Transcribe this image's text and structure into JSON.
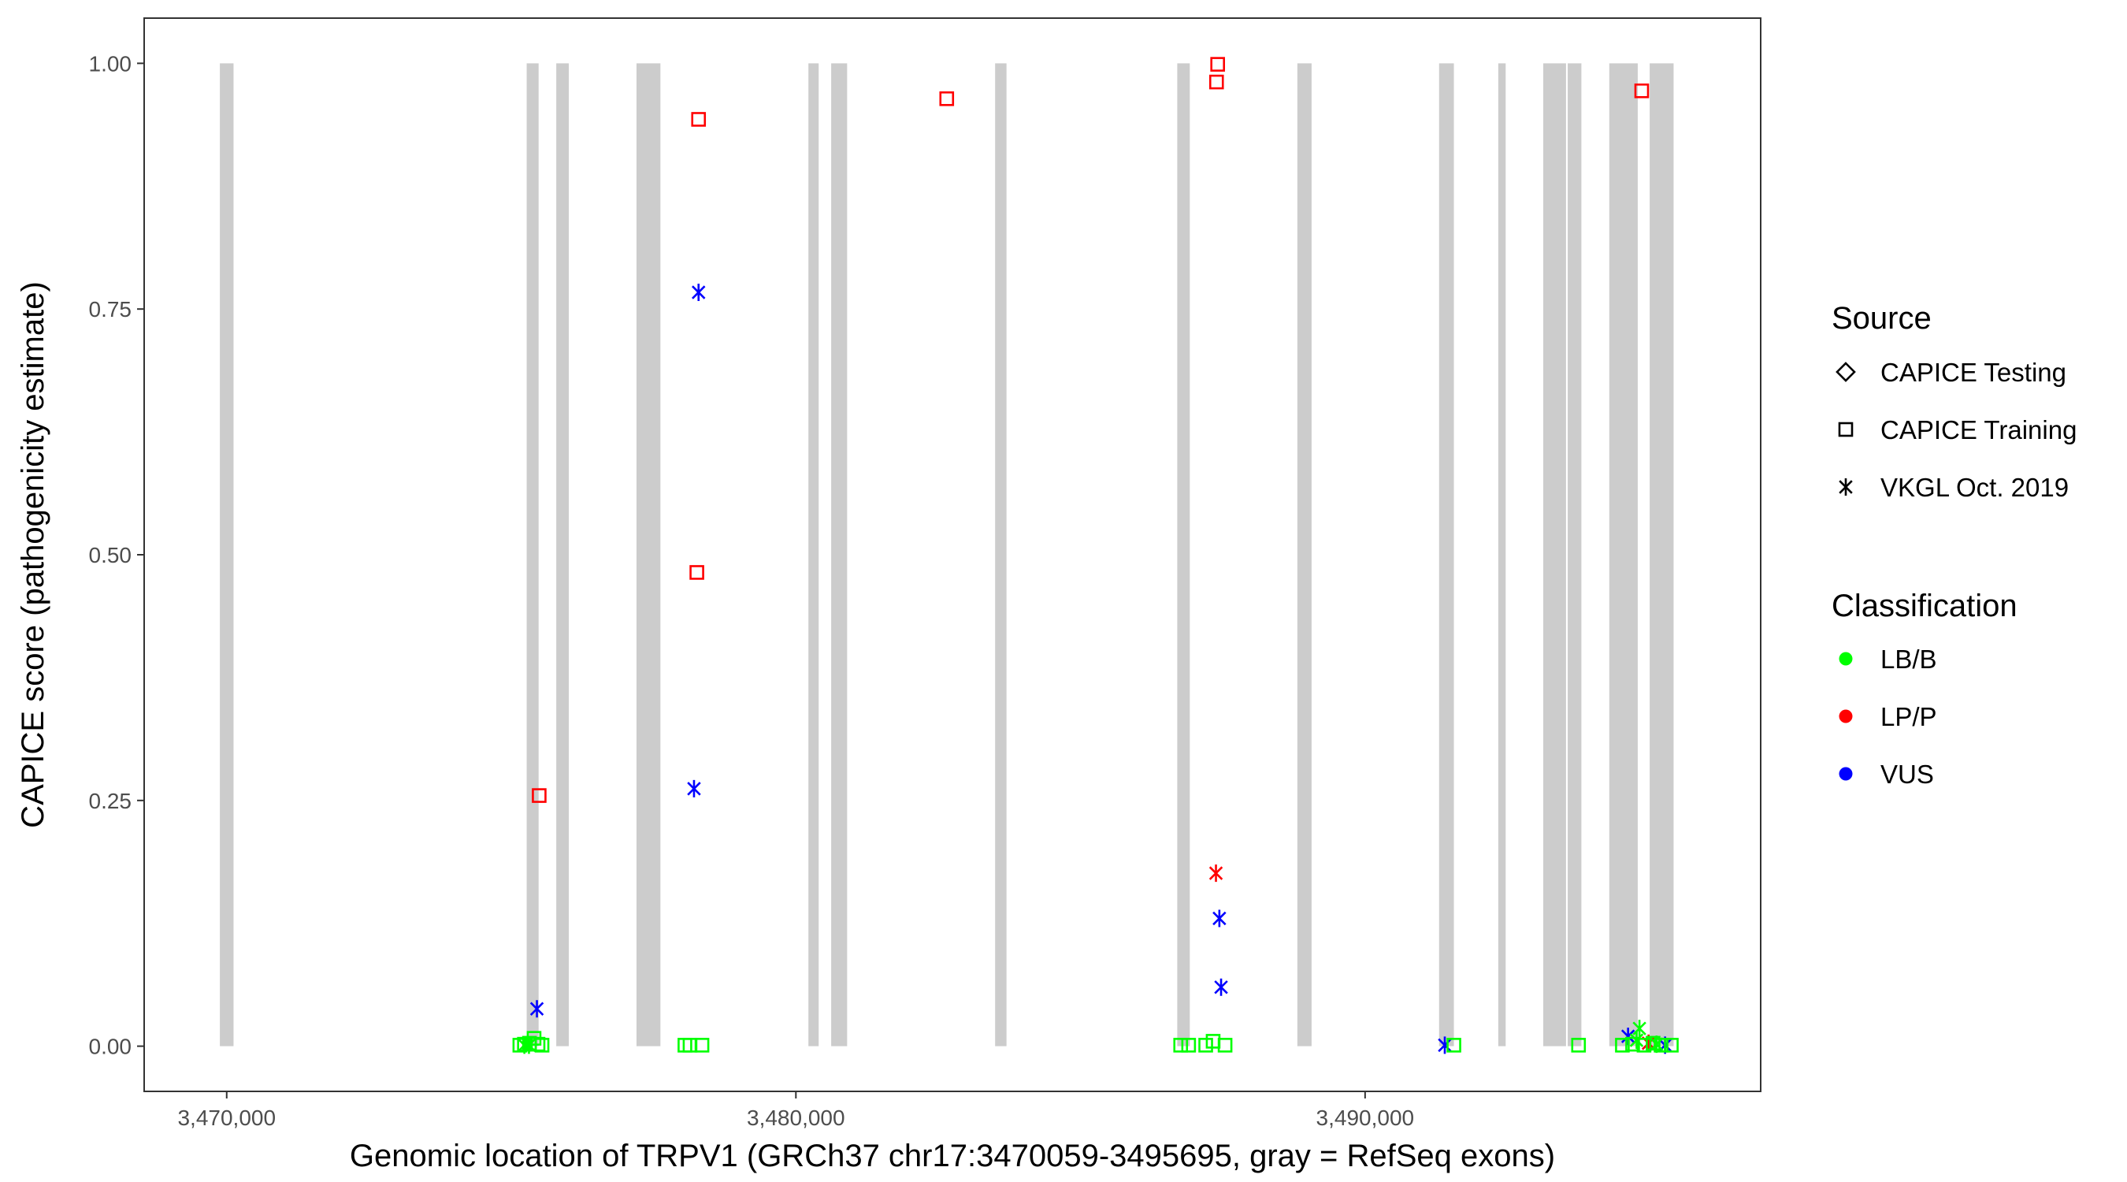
{
  "chart_data": {
    "type": "scatter",
    "xlabel": "Genomic location of TRPV1 (GRCh37 chr17:3470059-3495695, gray = RefSeq exons)",
    "ylabel": "CAPICE score (pathogenicity estimate)",
    "xlim": [
      3468550,
      3496950
    ],
    "ylim": [
      -0.046,
      1.046
    ],
    "x_ticks": [
      3470000,
      3480000,
      3490000
    ],
    "x_tick_labels": [
      "3,470,000",
      "3,480,000",
      "3,490,000"
    ],
    "y_ticks": [
      0,
      0.25,
      0.5,
      0.75,
      1.0
    ],
    "y_tick_labels": [
      "0.00",
      "0.25",
      "0.50",
      "0.75",
      "1.00"
    ],
    "grid": false,
    "legend_position": "right",
    "exons": [
      [
        3469880,
        3470120
      ],
      [
        3475270,
        3475480
      ],
      [
        3475790,
        3476010
      ],
      [
        3477200,
        3477620
      ],
      [
        3480220,
        3480400
      ],
      [
        3480620,
        3480900
      ],
      [
        3483500,
        3483700
      ],
      [
        3486700,
        3486920
      ],
      [
        3488810,
        3489060
      ],
      [
        3491300,
        3491560
      ],
      [
        3492340,
        3492470
      ],
      [
        3493130,
        3493530
      ],
      [
        3493560,
        3493800
      ],
      [
        3494290,
        3494790
      ],
      [
        3495000,
        3495420
      ]
    ],
    "legend": {
      "source": {
        "title": "Source",
        "items": [
          {
            "label": "CAPICE Testing",
            "shape": "diamond"
          },
          {
            "label": "CAPICE Training",
            "shape": "square"
          },
          {
            "label": "VKGL Oct. 2019",
            "shape": "asterisk"
          }
        ]
      },
      "classification": {
        "title": "Classification",
        "items": [
          {
            "label": "LB/B",
            "color": "#00ff00"
          },
          {
            "label": "LP/P",
            "color": "#ff0000"
          },
          {
            "label": "VUS",
            "color": "#0000ff"
          }
        ]
      }
    },
    "colors": {
      "LB/B": "#00ff00",
      "LP/P": "#ff0000",
      "VUS": "#0000ff",
      "exon": "#cccccc"
    },
    "points": [
      {
        "x": 3475490,
        "y": 0.255,
        "shape": "square",
        "class": "LP/P"
      },
      {
        "x": 3478260,
        "y": 0.482,
        "shape": "square",
        "class": "LP/P"
      },
      {
        "x": 3478290,
        "y": 0.943,
        "shape": "square",
        "class": "LP/P"
      },
      {
        "x": 3482650,
        "y": 0.964,
        "shape": "square",
        "class": "LP/P"
      },
      {
        "x": 3487410,
        "y": 0.999,
        "shape": "square",
        "class": "LP/P"
      },
      {
        "x": 3487390,
        "y": 0.981,
        "shape": "square",
        "class": "LP/P"
      },
      {
        "x": 3494860,
        "y": 0.972,
        "shape": "square",
        "class": "LP/P"
      },
      {
        "x": 3478290,
        "y": 0.767,
        "shape": "asterisk",
        "class": "VUS"
      },
      {
        "x": 3478210,
        "y": 0.262,
        "shape": "asterisk",
        "class": "VUS"
      },
      {
        "x": 3475450,
        "y": 0.038,
        "shape": "asterisk",
        "class": "VUS"
      },
      {
        "x": 3487380,
        "y": 0.176,
        "shape": "asterisk",
        "class": "LP/P"
      },
      {
        "x": 3487440,
        "y": 0.13,
        "shape": "asterisk",
        "class": "VUS"
      },
      {
        "x": 3487470,
        "y": 0.06,
        "shape": "asterisk",
        "class": "VUS"
      },
      {
        "x": 3491400,
        "y": 0.001,
        "shape": "asterisk",
        "class": "VUS"
      },
      {
        "x": 3494620,
        "y": 0.01,
        "shape": "asterisk",
        "class": "VUS"
      },
      {
        "x": 3495270,
        "y": 0.001,
        "shape": "asterisk",
        "class": "VUS"
      },
      {
        "x": 3494820,
        "y": 0.018,
        "shape": "asterisk",
        "class": "LB/B"
      },
      {
        "x": 3494980,
        "y": 0.003,
        "shape": "asterisk",
        "class": "LP/P"
      },
      {
        "x": 3475150,
        "y": 0.001,
        "shape": "square",
        "class": "LB/B"
      },
      {
        "x": 3475230,
        "y": 0.002,
        "shape": "square",
        "class": "LB/B"
      },
      {
        "x": 3475320,
        "y": 0.003,
        "shape": "square",
        "class": "LB/B"
      },
      {
        "x": 3475400,
        "y": 0.008,
        "shape": "square",
        "class": "LB/B"
      },
      {
        "x": 3475470,
        "y": 0.002,
        "shape": "square",
        "class": "LB/B"
      },
      {
        "x": 3475540,
        "y": 0.001,
        "shape": "square",
        "class": "LB/B"
      },
      {
        "x": 3475230,
        "y": 0.001,
        "shape": "asterisk",
        "class": "LB/B"
      },
      {
        "x": 3475310,
        "y": 0.001,
        "shape": "asterisk",
        "class": "LB/B"
      },
      {
        "x": 3478050,
        "y": 0.001,
        "shape": "square",
        "class": "LB/B"
      },
      {
        "x": 3478140,
        "y": 0.001,
        "shape": "square",
        "class": "LB/B"
      },
      {
        "x": 3478350,
        "y": 0.001,
        "shape": "square",
        "class": "LB/B"
      },
      {
        "x": 3486760,
        "y": 0.001,
        "shape": "square",
        "class": "LB/B"
      },
      {
        "x": 3486900,
        "y": 0.001,
        "shape": "square",
        "class": "LB/B"
      },
      {
        "x": 3487200,
        "y": 0.001,
        "shape": "square",
        "class": "LB/B"
      },
      {
        "x": 3487330,
        "y": 0.005,
        "shape": "square",
        "class": "LB/B"
      },
      {
        "x": 3487540,
        "y": 0.001,
        "shape": "square",
        "class": "LB/B"
      },
      {
        "x": 3491560,
        "y": 0.001,
        "shape": "square",
        "class": "LB/B"
      },
      {
        "x": 3493750,
        "y": 0.001,
        "shape": "square",
        "class": "LB/B"
      },
      {
        "x": 3494520,
        "y": 0.001,
        "shape": "square",
        "class": "LB/B"
      },
      {
        "x": 3494700,
        "y": 0.002,
        "shape": "square",
        "class": "LB/B"
      },
      {
        "x": 3494900,
        "y": 0.001,
        "shape": "square",
        "class": "LB/B"
      },
      {
        "x": 3495060,
        "y": 0.003,
        "shape": "square",
        "class": "LB/B"
      },
      {
        "x": 3495200,
        "y": 0.001,
        "shape": "square",
        "class": "LB/B"
      },
      {
        "x": 3495380,
        "y": 0.001,
        "shape": "square",
        "class": "LB/B"
      },
      {
        "x": 3494770,
        "y": 0.006,
        "shape": "asterisk",
        "class": "LB/B"
      },
      {
        "x": 3495120,
        "y": 0.002,
        "shape": "asterisk",
        "class": "LB/B"
      }
    ]
  }
}
